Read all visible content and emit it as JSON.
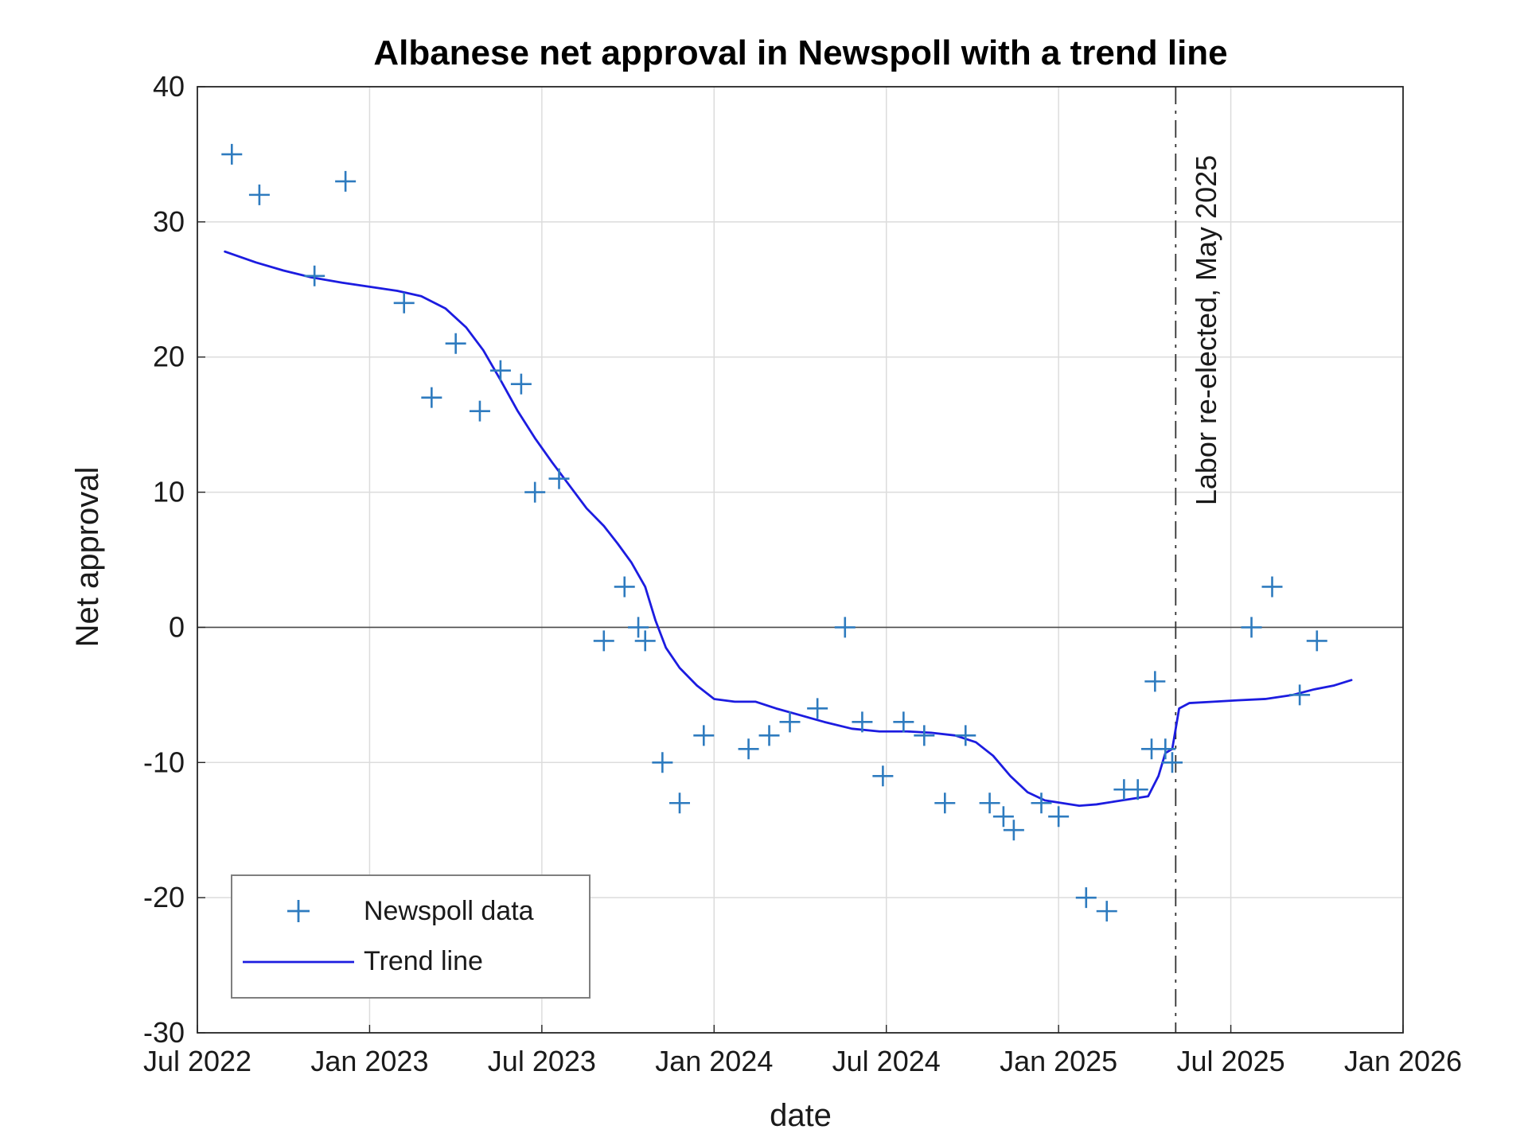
{
  "chart_data": {
    "type": "scatter",
    "title": "Albanese net approval in Newspoll with a trend line",
    "xlabel": "date",
    "ylabel": "Net approval",
    "xlim": [
      2022.5,
      2026.0
    ],
    "ylim": [
      -30,
      40
    ],
    "grid": true,
    "legend_position": "bottom-left",
    "x_ticks": [
      {
        "value": 2022.5,
        "label": "Jul 2022"
      },
      {
        "value": 2023.0,
        "label": "Jan 2023"
      },
      {
        "value": 2023.5,
        "label": "Jul 2023"
      },
      {
        "value": 2024.0,
        "label": "Jan 2024"
      },
      {
        "value": 2024.5,
        "label": "Jul 2024"
      },
      {
        "value": 2025.0,
        "label": "Jan 2025"
      },
      {
        "value": 2025.5,
        "label": "Jul 2025"
      },
      {
        "value": 2026.0,
        "label": "Jan 2026"
      }
    ],
    "y_ticks": [
      {
        "value": -30,
        "label": "-30"
      },
      {
        "value": -20,
        "label": "-20"
      },
      {
        "value": -10,
        "label": "-10"
      },
      {
        "value": 0,
        "label": "0"
      },
      {
        "value": 10,
        "label": "10"
      },
      {
        "value": 20,
        "label": "20"
      },
      {
        "value": 30,
        "label": "30"
      },
      {
        "value": 40,
        "label": "40"
      }
    ],
    "annotation": {
      "label": "Labor re-elected, May 2025",
      "x": 2025.34
    },
    "colors": {
      "marker": "#2e7bbf",
      "trend": "#1c1ce0",
      "grid": "#dcdcdc",
      "axes": "#262626",
      "zero_line": "#4d4d4d",
      "annotation_line": "#333333"
    },
    "series": [
      {
        "name": "Newspoll data",
        "type": "scatter",
        "marker": "+",
        "color": "#2e7bbf",
        "points": [
          [
            2022.6,
            35
          ],
          [
            2022.68,
            32
          ],
          [
            2022.84,
            26
          ],
          [
            2022.93,
            33
          ],
          [
            2023.1,
            24
          ],
          [
            2023.18,
            17
          ],
          [
            2023.25,
            21
          ],
          [
            2023.32,
            16
          ],
          [
            2023.38,
            19
          ],
          [
            2023.44,
            18
          ],
          [
            2023.48,
            10
          ],
          [
            2023.55,
            11
          ],
          [
            2023.68,
            -1
          ],
          [
            2023.74,
            3
          ],
          [
            2023.78,
            0
          ],
          [
            2023.8,
            -1
          ],
          [
            2023.85,
            -10
          ],
          [
            2023.9,
            -13
          ],
          [
            2023.97,
            -8
          ],
          [
            2024.1,
            -9
          ],
          [
            2024.16,
            -8
          ],
          [
            2024.22,
            -7
          ],
          [
            2024.3,
            -6
          ],
          [
            2024.38,
            0
          ],
          [
            2024.43,
            -7
          ],
          [
            2024.49,
            -11
          ],
          [
            2024.55,
            -7
          ],
          [
            2024.61,
            -8
          ],
          [
            2024.67,
            -13
          ],
          [
            2024.73,
            -8
          ],
          [
            2024.8,
            -13
          ],
          [
            2024.84,
            -14
          ],
          [
            2024.87,
            -15
          ],
          [
            2024.95,
            -13
          ],
          [
            2025.0,
            -14
          ],
          [
            2025.08,
            -20
          ],
          [
            2025.14,
            -21
          ],
          [
            2025.19,
            -12
          ],
          [
            2025.23,
            -12
          ],
          [
            2025.27,
            -9
          ],
          [
            2025.28,
            -4
          ],
          [
            2025.31,
            -9
          ],
          [
            2025.33,
            -10
          ],
          [
            2025.56,
            0
          ],
          [
            2025.62,
            3
          ],
          [
            2025.7,
            -5
          ],
          [
            2025.75,
            -1
          ]
        ]
      },
      {
        "name": "Trend line",
        "type": "line",
        "color": "#1c1ce0",
        "points": [
          [
            2022.58,
            27.8
          ],
          [
            2022.67,
            27.0
          ],
          [
            2022.75,
            26.4
          ],
          [
            2022.83,
            25.9
          ],
          [
            2022.92,
            25.5
          ],
          [
            2023.0,
            25.2
          ],
          [
            2023.08,
            24.9
          ],
          [
            2023.15,
            24.5
          ],
          [
            2023.22,
            23.6
          ],
          [
            2023.28,
            22.2
          ],
          [
            2023.33,
            20.5
          ],
          [
            2023.38,
            18.3
          ],
          [
            2023.43,
            16.0
          ],
          [
            2023.48,
            14.0
          ],
          [
            2023.53,
            12.2
          ],
          [
            2023.58,
            10.5
          ],
          [
            2023.63,
            8.8
          ],
          [
            2023.68,
            7.5
          ],
          [
            2023.72,
            6.2
          ],
          [
            2023.76,
            4.8
          ],
          [
            2023.8,
            3.0
          ],
          [
            2023.83,
            0.5
          ],
          [
            2023.86,
            -1.5
          ],
          [
            2023.9,
            -3.0
          ],
          [
            2023.95,
            -4.3
          ],
          [
            2024.0,
            -5.3
          ],
          [
            2024.06,
            -5.5
          ],
          [
            2024.12,
            -5.5
          ],
          [
            2024.18,
            -6.0
          ],
          [
            2024.25,
            -6.5
          ],
          [
            2024.32,
            -7.0
          ],
          [
            2024.4,
            -7.5
          ],
          [
            2024.48,
            -7.7
          ],
          [
            2024.56,
            -7.7
          ],
          [
            2024.63,
            -7.8
          ],
          [
            2024.7,
            -8.0
          ],
          [
            2024.76,
            -8.5
          ],
          [
            2024.81,
            -9.5
          ],
          [
            2024.86,
            -11.0
          ],
          [
            2024.91,
            -12.2
          ],
          [
            2024.96,
            -12.8
          ],
          [
            2025.01,
            -13.0
          ],
          [
            2025.06,
            -13.2
          ],
          [
            2025.11,
            -13.1
          ],
          [
            2025.16,
            -12.9
          ],
          [
            2025.21,
            -12.7
          ],
          [
            2025.26,
            -12.5
          ],
          [
            2025.29,
            -11.0
          ],
          [
            2025.31,
            -9.3
          ],
          [
            2025.33,
            -9.0
          ],
          [
            2025.35,
            -6.0
          ],
          [
            2025.38,
            -5.6
          ],
          [
            2025.45,
            -5.5
          ],
          [
            2025.52,
            -5.4
          ],
          [
            2025.6,
            -5.3
          ],
          [
            2025.68,
            -5.0
          ],
          [
            2025.74,
            -4.6
          ],
          [
            2025.8,
            -4.3
          ],
          [
            2025.85,
            -3.9
          ]
        ]
      }
    ]
  }
}
